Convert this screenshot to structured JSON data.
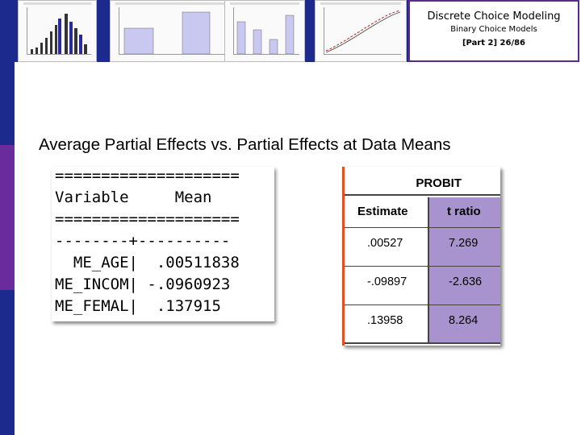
{
  "header": {
    "title": "Discrete Choice Modeling",
    "subtitle": "Binary Choice Models",
    "slide_ref": "[Part 2]   26/86"
  },
  "main": {
    "heading": "Average Partial Effects vs. Partial Effects at Data Means"
  },
  "output_listing": {
    "lines": [
      "====================",
      "Variable     Mean",
      "====================",
      "--------+----------",
      "  ME_AGE|  .00511838",
      "ME_INCOM| -.0960923",
      "ME_FEMAL|  .137915"
    ]
  },
  "probit_table": {
    "title": "PROBIT",
    "columns": [
      "Estimate",
      "t ratio"
    ],
    "rows": [
      {
        "estimate": ".00527",
        "t_ratio": "7.269"
      },
      {
        "estimate": "-.09897",
        "t_ratio": "-2.636"
      },
      {
        "estimate": ".13958",
        "t_ratio": "8.264"
      }
    ]
  },
  "colors": {
    "left_bar_blue": "#1b2a8c",
    "left_bar_purple": "#6a2c9c",
    "title_border": "#5a2b8a",
    "t_ratio_fill": "#a893cf",
    "red_rule": "#e05020"
  }
}
